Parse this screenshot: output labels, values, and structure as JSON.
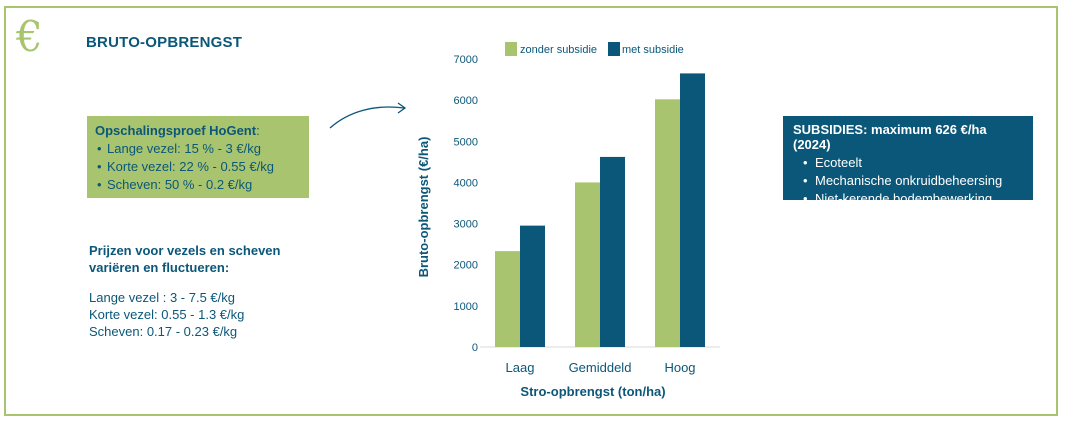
{
  "header": {
    "icon": "euro-icon",
    "icon_glyph": "€",
    "title": "BRUTO-OPBRENGST"
  },
  "scaling_box": {
    "heading": "Opschalingsproef HoGent",
    "heading_suffix": ":",
    "items": [
      "Lange vezel: 15 % - 3 €/kg",
      "Korte vezel: 22 % - 0.55 €/kg",
      "Scheven: 50 % - 0.2 €/kg"
    ]
  },
  "prices": {
    "heading_line1": "Prijzen voor vezels en scheven",
    "heading_line2": "variëren en fluctueren:",
    "lines": [
      "Lange vezel : 3 - 7.5 €/kg",
      "Korte vezel: 0.55 - 1.3 €/kg",
      "Scheven: 0.17 - 0.23 €/kg"
    ]
  },
  "subsidies": {
    "heading": "SUBSIDIES: maximum 626 €/ha (2024)",
    "items": [
      "Ecoteelt",
      "Mechanische onkruidbeheersing",
      "Niet-kerende bodembewerking"
    ]
  },
  "colors": {
    "green": "#a9c46f",
    "blue": "#0b5779",
    "text": "#0b5779"
  },
  "chart_data": {
    "type": "bar",
    "categories": [
      "Laag",
      "Gemiddeld",
      "Hoog"
    ],
    "series": [
      {
        "name": "zonder subsidie",
        "values": [
          2330,
          4000,
          6020
        ],
        "color": "#a9c46f"
      },
      {
        "name": "met subsidie",
        "values": [
          2950,
          4620,
          6650
        ],
        "color": "#0b5779"
      }
    ],
    "xlabel": "Stro-opbrengst (ton/ha)",
    "ylabel": "Bruto-opbrengst (€/ha)",
    "ylim": [
      0,
      7000
    ],
    "yticks": [
      0,
      1000,
      2000,
      3000,
      4000,
      5000,
      6000,
      7000
    ],
    "legend": "top"
  }
}
